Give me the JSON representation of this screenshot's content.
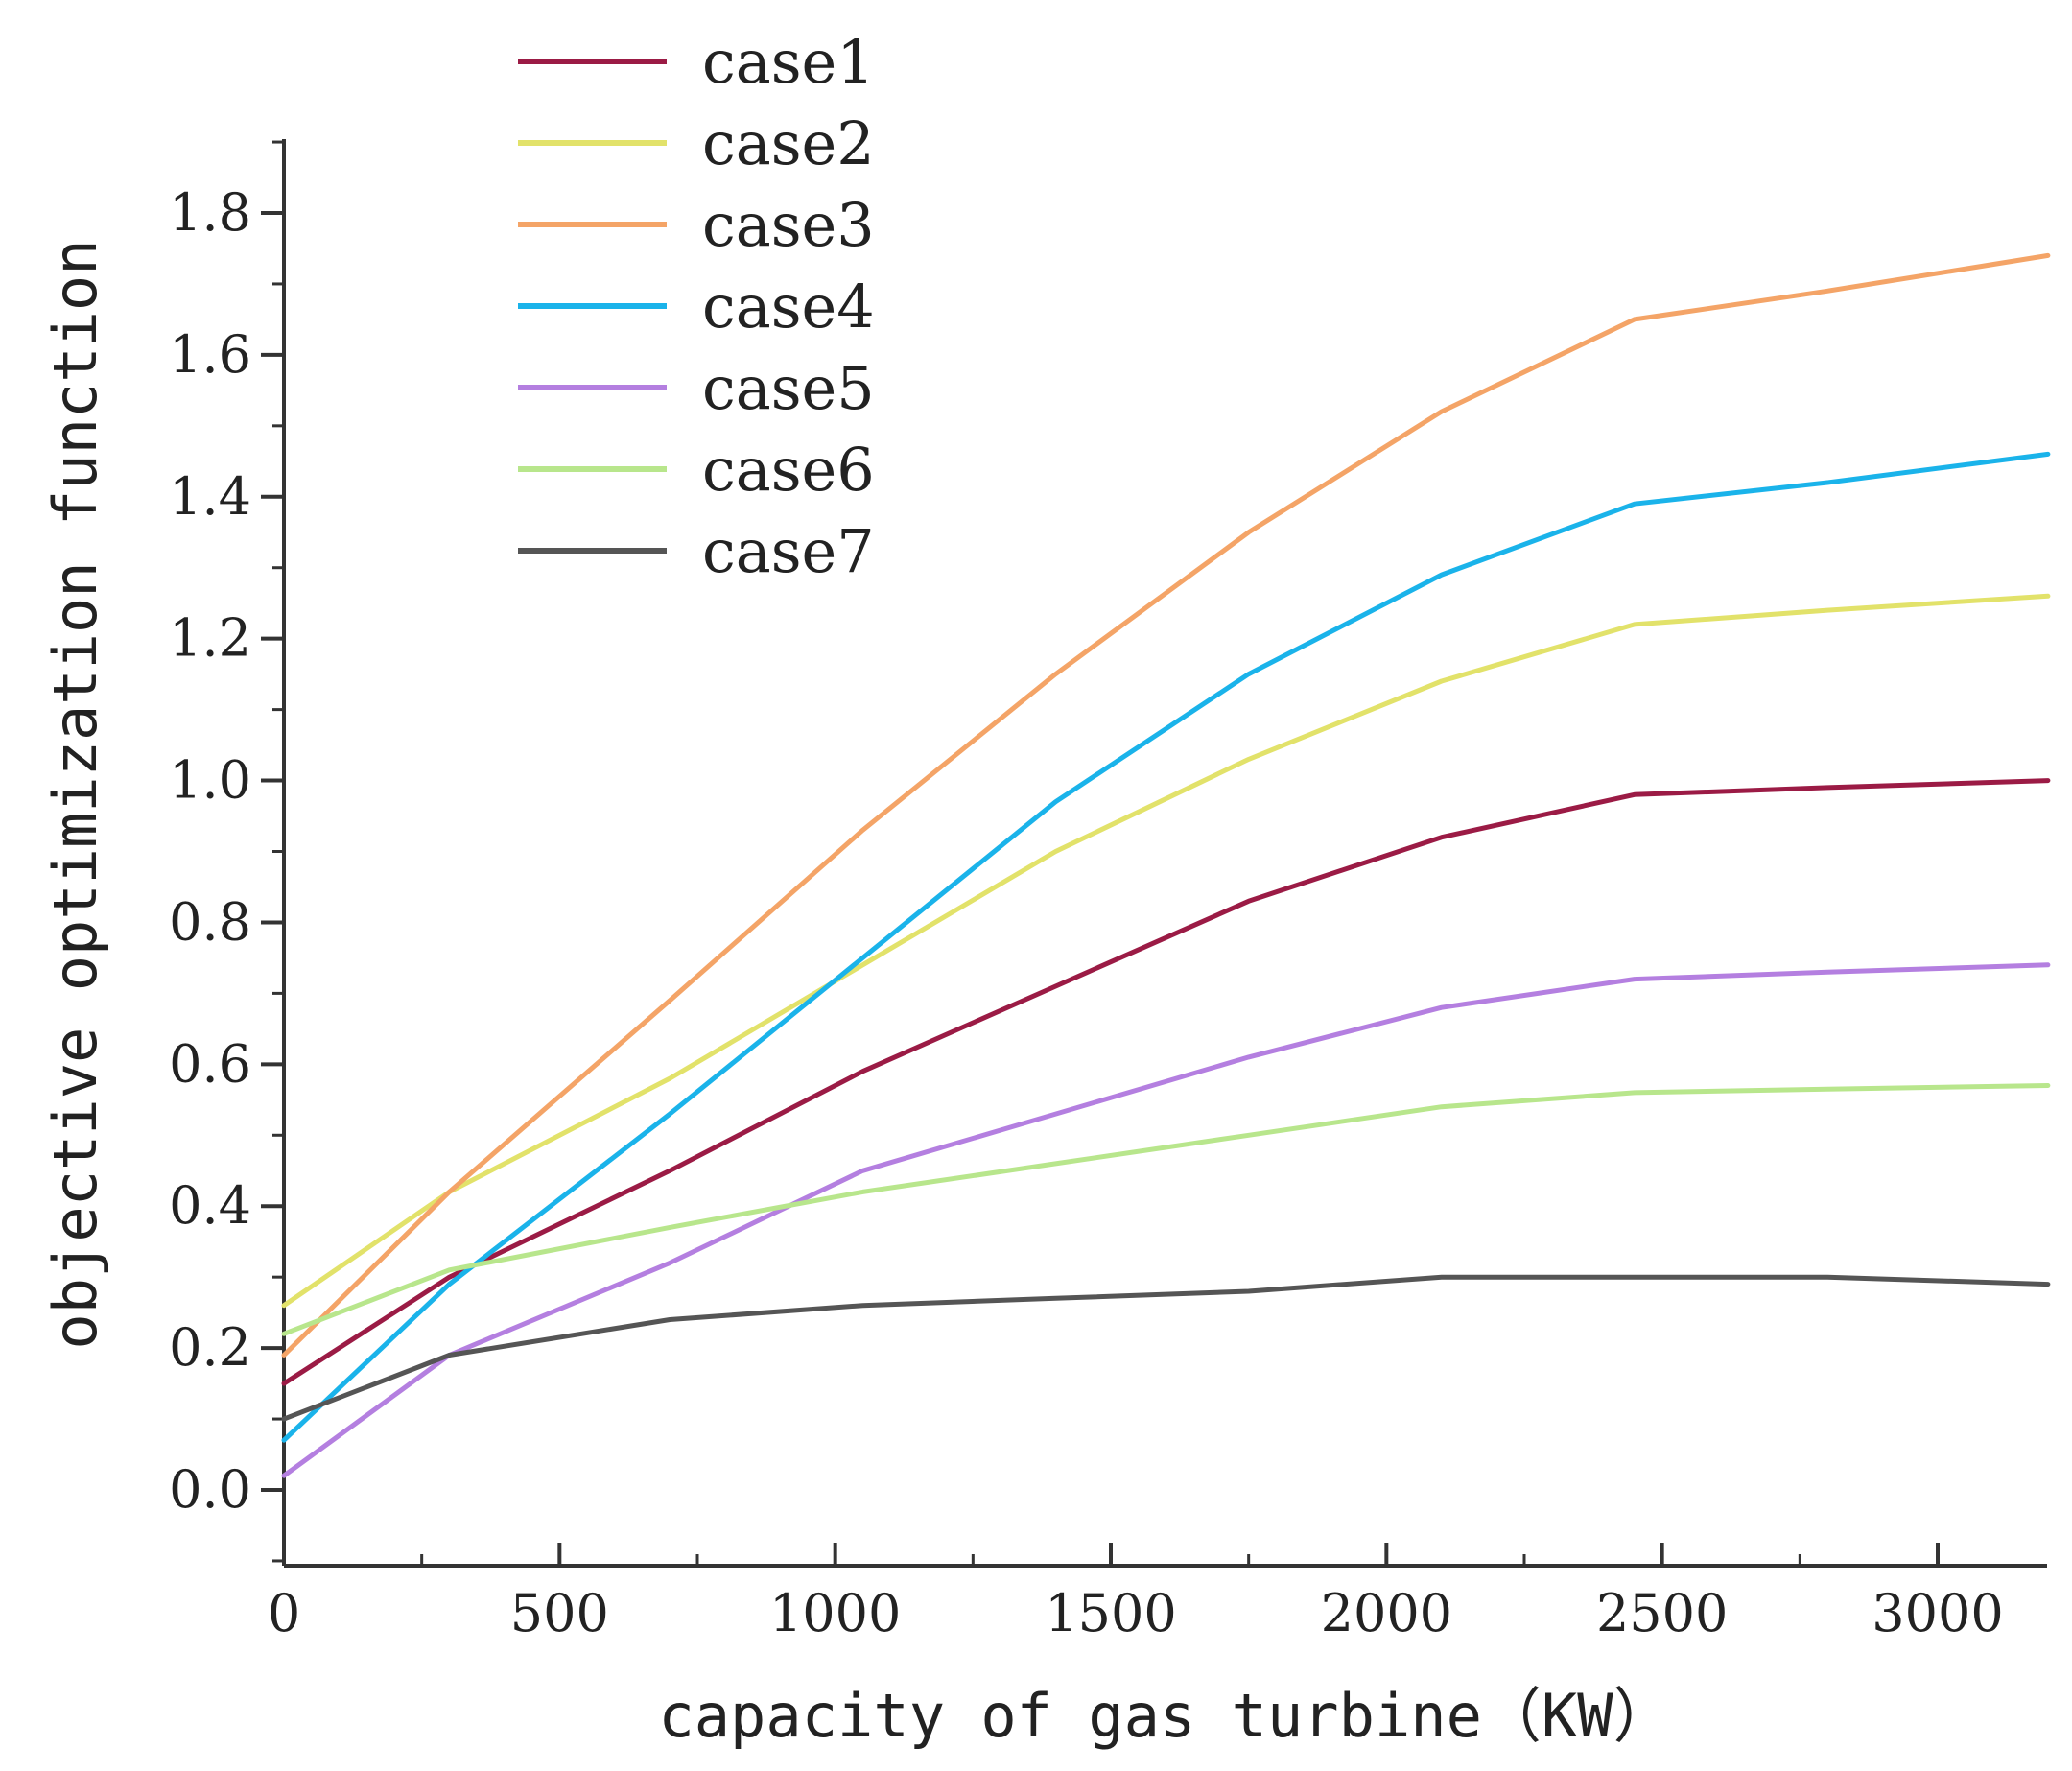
{
  "chart_data": {
    "type": "line",
    "xlabel": "capacity of gas turbine（KW）",
    "ylabel": "objective optimization function",
    "xlim": [
      0,
      3200
    ],
    "ylim": [
      -0.1,
      1.9
    ],
    "xticks": [
      "0",
      "500",
      "1000",
      "1500",
      "2000",
      "2500",
      "3000"
    ],
    "xtick_values": [
      0,
      500,
      1000,
      1500,
      2000,
      2500,
      3000
    ],
    "yticks": [
      "0.0",
      "0.2",
      "0.4",
      "0.6",
      "0.8",
      "1.0",
      "1.2",
      "1.4",
      "1.6",
      "1.8"
    ],
    "ytick_values": [
      0.0,
      0.2,
      0.4,
      0.6,
      0.8,
      1.0,
      1.2,
      1.4,
      1.6,
      1.8
    ],
    "legend_position": "top-left",
    "grid": false,
    "x": [
      0,
      300,
      700,
      1050,
      1400,
      1750,
      2100,
      2450,
      2800,
      3200
    ],
    "series": [
      {
        "name": "case1",
        "color": "#9b1b45",
        "values": [
          0.15,
          0.3,
          0.45,
          0.59,
          0.71,
          0.83,
          0.92,
          0.98,
          0.99,
          1.0
        ]
      },
      {
        "name": "case2",
        "color": "#e2e26a",
        "values": [
          0.26,
          0.42,
          0.58,
          0.74,
          0.9,
          1.03,
          1.14,
          1.22,
          1.24,
          1.26
        ]
      },
      {
        "name": "case3",
        "color": "#f4a467",
        "values": [
          0.19,
          0.42,
          0.69,
          0.93,
          1.15,
          1.35,
          1.52,
          1.65,
          1.69,
          1.74
        ]
      },
      {
        "name": "case4",
        "color": "#1ab3ea",
        "values": [
          0.07,
          0.29,
          0.53,
          0.75,
          0.97,
          1.15,
          1.29,
          1.39,
          1.42,
          1.46
        ]
      },
      {
        "name": "case5",
        "color": "#b47fe0",
        "values": [
          0.02,
          0.19,
          0.32,
          0.45,
          0.53,
          0.61,
          0.68,
          0.72,
          0.73,
          0.74
        ]
      },
      {
        "name": "case6",
        "color": "#b8e68c",
        "values": [
          0.22,
          0.31,
          0.37,
          0.42,
          0.46,
          0.5,
          0.54,
          0.56,
          0.565,
          0.57
        ]
      },
      {
        "name": "case7",
        "color": "#555555",
        "values": [
          0.1,
          0.19,
          0.24,
          0.26,
          0.27,
          0.28,
          0.3,
          0.3,
          0.3,
          0.29
        ]
      }
    ]
  }
}
